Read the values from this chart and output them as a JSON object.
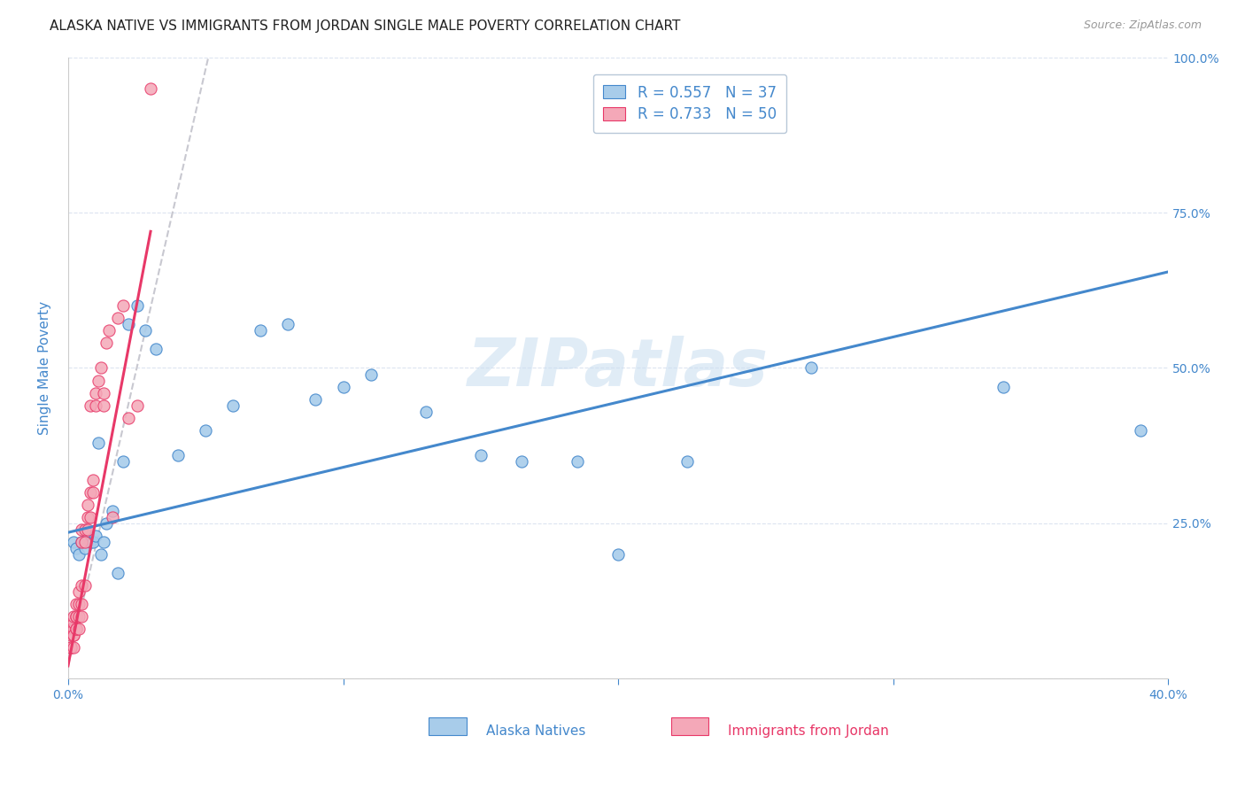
{
  "title": "ALASKA NATIVE VS IMMIGRANTS FROM JORDAN SINGLE MALE POVERTY CORRELATION CHART",
  "source": "Source: ZipAtlas.com",
  "xlabel_blue": "Alaska Natives",
  "xlabel_pink": "Immigrants from Jordan",
  "ylabel": "Single Male Poverty",
  "xlim": [
    0.0,
    0.4
  ],
  "ylim": [
    0.0,
    1.0
  ],
  "xticks": [
    0.0,
    0.1,
    0.2,
    0.3,
    0.4
  ],
  "xtick_labels": [
    "0.0%",
    "",
    "",
    "",
    "40.0%"
  ],
  "yticks": [
    0.0,
    0.25,
    0.5,
    0.75,
    1.0
  ],
  "ytick_labels": [
    "",
    "25.0%",
    "50.0%",
    "75.0%",
    "100.0%"
  ],
  "blue_R": 0.557,
  "blue_N": 37,
  "pink_R": 0.733,
  "pink_N": 50,
  "blue_color": "#a8ccea",
  "pink_color": "#f4a8b8",
  "blue_line_color": "#4488cc",
  "pink_line_color": "#e83868",
  "dashed_line_color": "#c8c8d0",
  "legend_text_color": "#4488cc",
  "axis_label_color": "#4488cc",
  "tick_color": "#4488cc",
  "background_color": "#ffffff",
  "blue_scatter_x": [
    0.002,
    0.003,
    0.004,
    0.005,
    0.006,
    0.007,
    0.008,
    0.009,
    0.01,
    0.011,
    0.012,
    0.013,
    0.014,
    0.016,
    0.018,
    0.02,
    0.022,
    0.025,
    0.028,
    0.032,
    0.04,
    0.05,
    0.06,
    0.07,
    0.08,
    0.09,
    0.1,
    0.11,
    0.13,
    0.15,
    0.165,
    0.185,
    0.2,
    0.225,
    0.27,
    0.34,
    0.39
  ],
  "blue_scatter_y": [
    0.22,
    0.21,
    0.2,
    0.22,
    0.21,
    0.23,
    0.22,
    0.22,
    0.23,
    0.38,
    0.2,
    0.22,
    0.25,
    0.27,
    0.17,
    0.35,
    0.57,
    0.6,
    0.56,
    0.53,
    0.36,
    0.4,
    0.44,
    0.56,
    0.57,
    0.45,
    0.47,
    0.49,
    0.43,
    0.36,
    0.35,
    0.35,
    0.2,
    0.35,
    0.5,
    0.47,
    0.4
  ],
  "pink_scatter_x": [
    0.001,
    0.001,
    0.001,
    0.001,
    0.001,
    0.002,
    0.002,
    0.002,
    0.002,
    0.002,
    0.002,
    0.003,
    0.003,
    0.003,
    0.003,
    0.003,
    0.004,
    0.004,
    0.004,
    0.004,
    0.005,
    0.005,
    0.005,
    0.005,
    0.005,
    0.006,
    0.006,
    0.006,
    0.007,
    0.007,
    0.007,
    0.008,
    0.008,
    0.008,
    0.009,
    0.009,
    0.01,
    0.01,
    0.011,
    0.012,
    0.013,
    0.013,
    0.014,
    0.015,
    0.016,
    0.018,
    0.02,
    0.022,
    0.025,
    0.03
  ],
  "pink_scatter_y": [
    0.05,
    0.07,
    0.08,
    0.05,
    0.08,
    0.05,
    0.07,
    0.08,
    0.09,
    0.07,
    0.1,
    0.08,
    0.1,
    0.12,
    0.08,
    0.1,
    0.08,
    0.1,
    0.12,
    0.14,
    0.1,
    0.12,
    0.15,
    0.22,
    0.24,
    0.15,
    0.22,
    0.24,
    0.26,
    0.28,
    0.24,
    0.26,
    0.3,
    0.44,
    0.32,
    0.3,
    0.44,
    0.46,
    0.48,
    0.5,
    0.44,
    0.46,
    0.54,
    0.56,
    0.26,
    0.58,
    0.6,
    0.42,
    0.44,
    0.95
  ],
  "blue_line_x0": 0.0,
  "blue_line_y0": 0.235,
  "blue_line_x1": 0.4,
  "blue_line_y1": 0.655,
  "pink_line_x0": 0.0,
  "pink_line_y0": 0.02,
  "pink_line_x1": 0.03,
  "pink_line_y1": 0.72,
  "dash_line_x0": 0.0,
  "dash_line_y0": 0.02,
  "dash_line_x1": 0.052,
  "dash_line_y1": 1.02,
  "watermark": "ZIPatlas",
  "title_fontsize": 11,
  "legend_fontsize": 12,
  "axis_fontsize": 10
}
